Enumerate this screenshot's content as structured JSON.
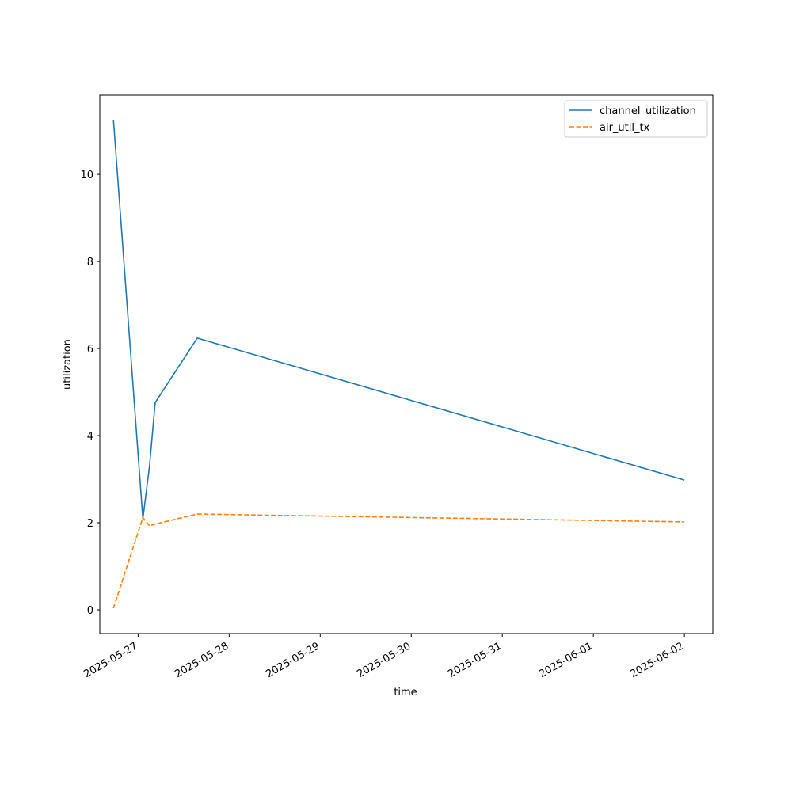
{
  "chart_data": {
    "type": "line",
    "x_label": "time",
    "y_label": "utilization",
    "series": [
      {
        "name": "channel_utilization",
        "color": "#1f77b4",
        "dash": "solid",
        "x": [
          "2025-05-26T17:30",
          "2025-05-27T01:15",
          "2025-05-27T03:00",
          "2025-05-27T04:30",
          "2025-05-27T15:36",
          "2025-06-02T00:00"
        ],
        "values": [
          11.25,
          2.09,
          3.3,
          4.76,
          6.24,
          2.98
        ]
      },
      {
        "name": "air_util_tx",
        "color": "#ff7f0e",
        "dash": "dashed",
        "x": [
          "2025-05-26T17:30",
          "2025-05-27T01:15",
          "2025-05-27T03:00",
          "2025-05-27T04:30",
          "2025-05-27T15:36",
          "2025-06-02T00:00"
        ],
        "values": [
          0.04,
          2.12,
          1.93,
          1.97,
          2.2,
          2.02
        ]
      }
    ],
    "xlim": [
      "2025-05-26T13:54",
      "2025-06-02T07:29"
    ],
    "xticks": [
      "2025-05-27",
      "2025-05-28",
      "2025-05-29",
      "2025-05-30",
      "2025-05-31",
      "2025-06-01",
      "2025-06-02"
    ],
    "ylim": [
      -0.545,
      11.82
    ],
    "yticks": [
      0,
      2,
      4,
      6,
      8,
      10
    ],
    "legend": "upper right",
    "grid": false
  }
}
